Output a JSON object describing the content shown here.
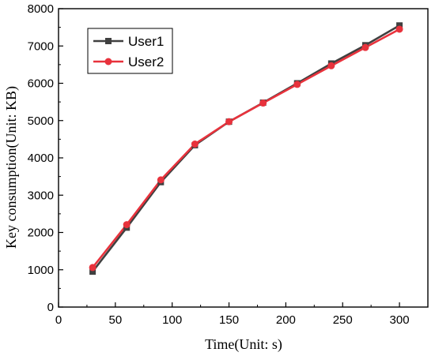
{
  "chart_data": {
    "type": "line",
    "xlabel": "Time(Unit: s)",
    "ylabel": "Key consumption(Unit: KB)",
    "xlim": [
      0,
      325
    ],
    "ylim": [
      0,
      8000
    ],
    "xticks": [
      0,
      50,
      100,
      150,
      200,
      250,
      300
    ],
    "yticks": [
      0,
      1000,
      2000,
      3000,
      4000,
      5000,
      6000,
      7000,
      8000
    ],
    "grid": false,
    "legend": "top-left",
    "x": [
      30,
      60,
      90,
      120,
      150,
      180,
      210,
      240,
      270,
      300
    ],
    "series": [
      {
        "name": "User1",
        "marker": "square",
        "color": "#404040",
        "values": [
          950,
          2130,
          3350,
          4340,
          4970,
          5480,
          6000,
          6530,
          7020,
          7550
        ]
      },
      {
        "name": "User2",
        "marker": "circle",
        "color": "#e8323c",
        "values": [
          1060,
          2210,
          3410,
          4370,
          4970,
          5470,
          5970,
          6470,
          6960,
          7450
        ]
      }
    ]
  }
}
